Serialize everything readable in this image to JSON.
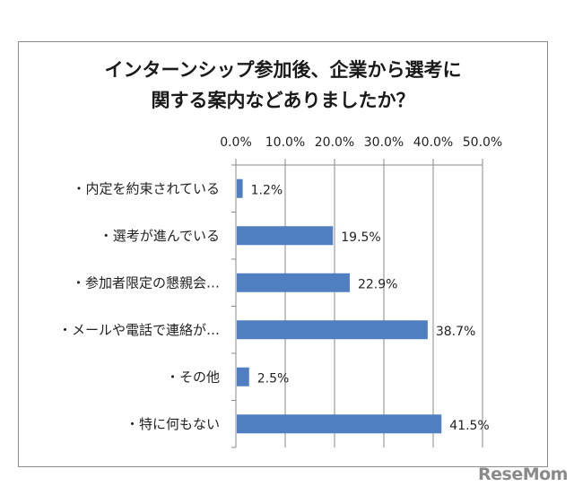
{
  "chart_data": {
    "type": "bar",
    "orientation": "horizontal",
    "title_lines": [
      "インターンシップ参加後、企業から選考に",
      "関する案内などありましたか？"
    ],
    "categories": [
      "・内定を約束されている",
      "・選考が進んでいる",
      "・参加者限定の懇親会…",
      "・メールや電話で連絡が…",
      "・その他",
      "・特に何もない"
    ],
    "values": [
      1.2,
      19.5,
      22.9,
      38.7,
      2.5,
      41.5
    ],
    "data_labels": [
      "1.2%",
      "19.5%",
      "22.9%",
      "38.7%",
      "2.5%",
      "41.5%"
    ],
    "xlim": [
      0,
      50
    ],
    "xticks": [
      0,
      10,
      20,
      30,
      40,
      50
    ],
    "xtick_labels": [
      "0.0%",
      "10.0%",
      "20.0%",
      "30.0%",
      "40.0%",
      "50.0%"
    ],
    "xaxis_position": "top",
    "grid": true,
    "bar_color": "#4f7fc0",
    "xlabel": "",
    "ylabel": ""
  },
  "watermark": "ReseMom"
}
